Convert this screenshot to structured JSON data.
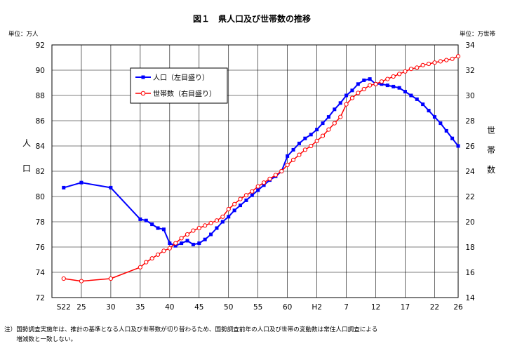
{
  "chart_data": {
    "type": "line",
    "title": "図１　県人口及び世帯数の推移",
    "y_left_unit": "単位：万人",
    "y_right_unit": "単位：万世帯",
    "y_left_label": [
      "人",
      "口"
    ],
    "y_right_label": [
      "世",
      "帯",
      "数"
    ],
    "ylim_left": [
      72,
      92
    ],
    "ylim_right": [
      14,
      34
    ],
    "yticks_left": [
      72,
      74,
      76,
      78,
      80,
      82,
      84,
      86,
      88,
      90,
      92
    ],
    "yticks_right": [
      14,
      16,
      18,
      20,
      22,
      24,
      26,
      28,
      30,
      32,
      34
    ],
    "x_range": [
      1945,
      2014
    ],
    "x_ticks": [
      {
        "label": "S22",
        "year": 1947
      },
      {
        "label": "25",
        "year": 1950
      },
      {
        "label": "30",
        "year": 1955
      },
      {
        "label": "35",
        "year": 1960
      },
      {
        "label": "40",
        "year": 1965
      },
      {
        "label": "45",
        "year": 1970
      },
      {
        "label": "50",
        "year": 1975
      },
      {
        "label": "55",
        "year": 1980
      },
      {
        "label": "60",
        "year": 1985
      },
      {
        "label": "H2",
        "year": 1990
      },
      {
        "label": "7",
        "year": 1995
      },
      {
        "label": "12",
        "year": 2000
      },
      {
        "label": "17",
        "year": 2005
      },
      {
        "label": "22",
        "year": 2010
      },
      {
        "label": "26",
        "year": 2014
      }
    ],
    "grid": true,
    "legend_position": "top-left",
    "series": [
      {
        "name": "人口（左目盛り）",
        "axis": "left",
        "color": "#0000ff",
        "marker": "square",
        "x": [
          1947,
          1950,
          1955,
          1960,
          1961,
          1962,
          1963,
          1964,
          1965,
          1966,
          1967,
          1968,
          1969,
          1970,
          1971,
          1972,
          1973,
          1974,
          1975,
          1976,
          1977,
          1978,
          1979,
          1980,
          1981,
          1982,
          1983,
          1984,
          1985,
          1986,
          1987,
          1988,
          1989,
          1990,
          1991,
          1992,
          1993,
          1994,
          1995,
          1996,
          1997,
          1998,
          1999,
          2000,
          2001,
          2002,
          2003,
          2004,
          2005,
          2006,
          2007,
          2008,
          2009,
          2010,
          2011,
          2012,
          2013,
          2014
        ],
        "values": [
          80.7,
          81.1,
          80.7,
          78.2,
          78.1,
          77.8,
          77.5,
          77.4,
          76.3,
          76.1,
          76.3,
          76.5,
          76.2,
          76.3,
          76.6,
          77.0,
          77.5,
          78.0,
          78.4,
          78.9,
          79.3,
          79.7,
          80.1,
          80.5,
          80.9,
          81.3,
          81.6,
          82.0,
          83.2,
          83.7,
          84.2,
          84.6,
          84.9,
          85.3,
          85.8,
          86.3,
          86.9,
          87.4,
          88.0,
          88.4,
          88.9,
          89.2,
          89.3,
          88.9,
          88.9,
          88.8,
          88.7,
          88.6,
          88.3,
          88.0,
          87.7,
          87.3,
          86.8,
          86.3,
          85.8,
          85.2,
          84.6,
          84.0
        ]
      },
      {
        "name": "世帯数（右目盛り）",
        "axis": "right",
        "color": "#ff0000",
        "marker": "circle",
        "x": [
          1947,
          1950,
          1955,
          1960,
          1961,
          1962,
          1963,
          1964,
          1965,
          1966,
          1967,
          1968,
          1969,
          1970,
          1971,
          1972,
          1973,
          1974,
          1975,
          1976,
          1977,
          1978,
          1979,
          1980,
          1981,
          1982,
          1983,
          1984,
          1985,
          1986,
          1987,
          1988,
          1989,
          1990,
          1991,
          1992,
          1993,
          1994,
          1995,
          1996,
          1997,
          1998,
          1999,
          2000,
          2001,
          2002,
          2003,
          2004,
          2005,
          2006,
          2007,
          2008,
          2009,
          2010,
          2011,
          2012,
          2013,
          2014
        ],
        "values": [
          15.5,
          15.3,
          15.5,
          16.4,
          16.8,
          17.1,
          17.4,
          17.7,
          17.9,
          18.3,
          18.7,
          19.0,
          19.3,
          19.5,
          19.7,
          19.9,
          20.1,
          20.4,
          21.0,
          21.4,
          21.8,
          22.1,
          22.4,
          22.8,
          23.1,
          23.4,
          23.7,
          24.0,
          24.5,
          24.9,
          25.3,
          25.7,
          26.0,
          26.4,
          26.8,
          27.3,
          27.8,
          28.3,
          29.3,
          29.8,
          30.2,
          30.5,
          30.8,
          30.9,
          31.1,
          31.3,
          31.5,
          31.7,
          31.9,
          32.1,
          32.2,
          32.4,
          32.5,
          32.6,
          32.7,
          32.8,
          32.9,
          33.1
        ]
      }
    ],
    "note_lines": [
      "注）国勢調査実施年は、推計の基準となる人口及び世帯数が切り替わるため、国勢調査前年の人口及び世帯の変動数は常住人口調査による",
      "　　増減数と一致しない。"
    ]
  }
}
